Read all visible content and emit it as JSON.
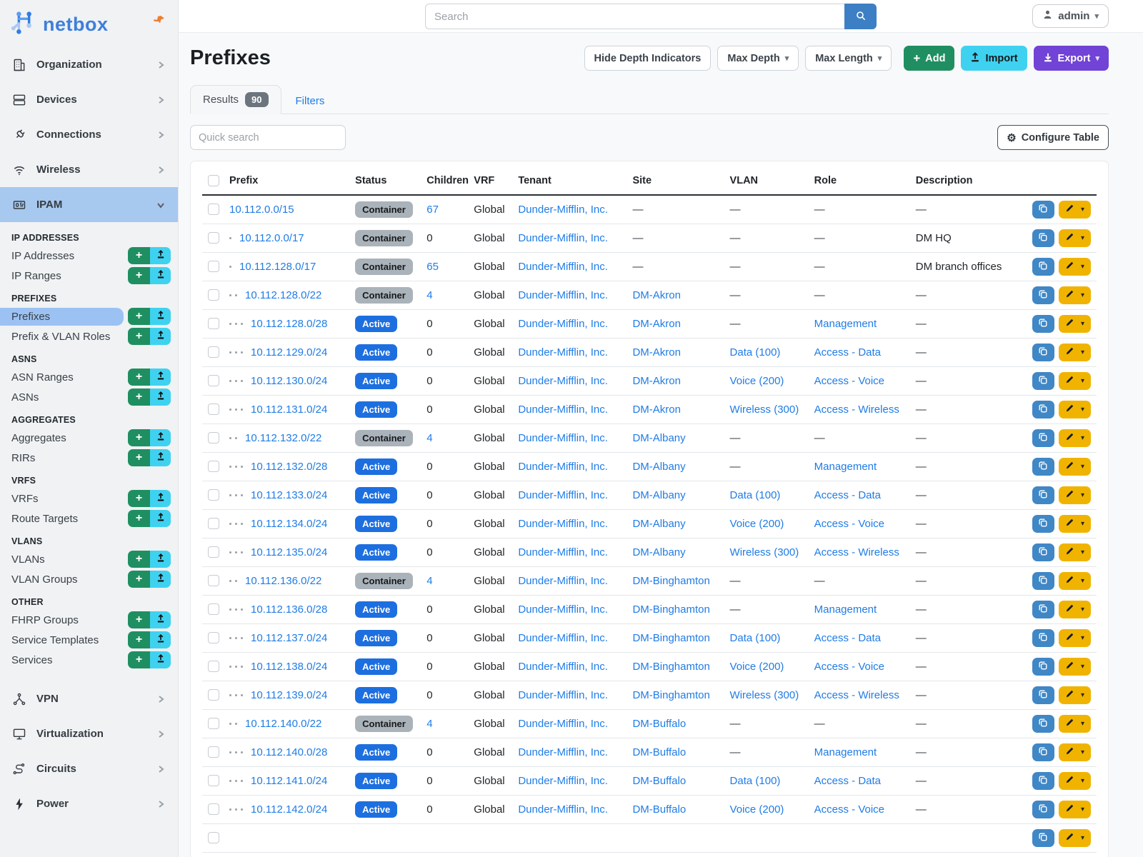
{
  "brand": {
    "name": "netbox"
  },
  "topbar": {
    "search_placeholder": "Search",
    "user": "admin"
  },
  "sidebar": {
    "top_items": [
      {
        "label": "Organization",
        "icon": "building-icon"
      },
      {
        "label": "Devices",
        "icon": "server-icon"
      },
      {
        "label": "Connections",
        "icon": "plug-icon"
      },
      {
        "label": "Wireless",
        "icon": "wifi-icon"
      }
    ],
    "ipam": {
      "label": "IPAM",
      "icon": "counter-icon"
    },
    "ipam_sections": [
      {
        "header": "IP ADDRESSES",
        "items": [
          {
            "label": "IP Addresses"
          },
          {
            "label": "IP Ranges"
          }
        ]
      },
      {
        "header": "PREFIXES",
        "items": [
          {
            "label": "Prefixes",
            "active": true
          },
          {
            "label": "Prefix & VLAN Roles"
          }
        ]
      },
      {
        "header": "ASNS",
        "items": [
          {
            "label": "ASN Ranges"
          },
          {
            "label": "ASNs"
          }
        ]
      },
      {
        "header": "AGGREGATES",
        "items": [
          {
            "label": "Aggregates"
          },
          {
            "label": "RIRs"
          }
        ]
      },
      {
        "header": "VRFS",
        "items": [
          {
            "label": "VRFs"
          },
          {
            "label": "Route Targets"
          }
        ]
      },
      {
        "header": "VLANS",
        "items": [
          {
            "label": "VLANs"
          },
          {
            "label": "VLAN Groups"
          }
        ]
      },
      {
        "header": "OTHER",
        "items": [
          {
            "label": "FHRP Groups"
          },
          {
            "label": "Service Templates"
          },
          {
            "label": "Services"
          }
        ]
      }
    ],
    "bottom_items": [
      {
        "label": "VPN",
        "icon": "sitemap-icon"
      },
      {
        "label": "Virtualization",
        "icon": "monitor-icon"
      },
      {
        "label": "Circuits",
        "icon": "route-icon"
      },
      {
        "label": "Power",
        "icon": "bolt-icon"
      }
    ]
  },
  "page": {
    "title": "Prefixes",
    "buttons": {
      "hide_depth": "Hide Depth Indicators",
      "max_depth": "Max Depth",
      "max_length": "Max Length",
      "add": "Add",
      "import": "Import",
      "export": "Export"
    },
    "tabs": {
      "results": "Results",
      "results_count": "90",
      "filters": "Filters"
    },
    "quick_search_placeholder": "Quick search",
    "configure_table": "Configure Table"
  },
  "table": {
    "columns": [
      "Prefix",
      "Status",
      "Children",
      "VRF",
      "Tenant",
      "Site",
      "VLAN",
      "Role",
      "Description"
    ],
    "rows": [
      {
        "depth": 0,
        "prefix": "10.112.0.0/15",
        "status": "Container",
        "children": "67",
        "children_link": true,
        "vrf": "Global",
        "tenant": "Dunder-Mifflin, Inc.",
        "site": "—",
        "vlan": "—",
        "role": "—",
        "description": "—"
      },
      {
        "depth": 1,
        "prefix": "10.112.0.0/17",
        "status": "Container",
        "children": "0",
        "children_link": false,
        "vrf": "Global",
        "tenant": "Dunder-Mifflin, Inc.",
        "site": "—",
        "vlan": "—",
        "role": "—",
        "description": "DM HQ"
      },
      {
        "depth": 1,
        "prefix": "10.112.128.0/17",
        "status": "Container",
        "children": "65",
        "children_link": true,
        "vrf": "Global",
        "tenant": "Dunder-Mifflin, Inc.",
        "site": "—",
        "vlan": "—",
        "role": "—",
        "description": "DM branch offices"
      },
      {
        "depth": 2,
        "prefix": "10.112.128.0/22",
        "status": "Container",
        "children": "4",
        "children_link": true,
        "vrf": "Global",
        "tenant": "Dunder-Mifflin, Inc.",
        "site": "DM-Akron",
        "vlan": "—",
        "role": "—",
        "description": "—"
      },
      {
        "depth": 3,
        "prefix": "10.112.128.0/28",
        "status": "Active",
        "children": "0",
        "children_link": false,
        "vrf": "Global",
        "tenant": "Dunder-Mifflin, Inc.",
        "site": "DM-Akron",
        "vlan": "—",
        "role": "Management",
        "description": "—"
      },
      {
        "depth": 3,
        "prefix": "10.112.129.0/24",
        "status": "Active",
        "children": "0",
        "children_link": false,
        "vrf": "Global",
        "tenant": "Dunder-Mifflin, Inc.",
        "site": "DM-Akron",
        "vlan": "Data (100)",
        "role": "Access - Data",
        "description": "—"
      },
      {
        "depth": 3,
        "prefix": "10.112.130.0/24",
        "status": "Active",
        "children": "0",
        "children_link": false,
        "vrf": "Global",
        "tenant": "Dunder-Mifflin, Inc.",
        "site": "DM-Akron",
        "vlan": "Voice (200)",
        "role": "Access - Voice",
        "description": "—"
      },
      {
        "depth": 3,
        "prefix": "10.112.131.0/24",
        "status": "Active",
        "children": "0",
        "children_link": false,
        "vrf": "Global",
        "tenant": "Dunder-Mifflin, Inc.",
        "site": "DM-Akron",
        "vlan": "Wireless (300)",
        "role": "Access - Wireless",
        "description": "—"
      },
      {
        "depth": 2,
        "prefix": "10.112.132.0/22",
        "status": "Container",
        "children": "4",
        "children_link": true,
        "vrf": "Global",
        "tenant": "Dunder-Mifflin, Inc.",
        "site": "DM-Albany",
        "vlan": "—",
        "role": "—",
        "description": "—"
      },
      {
        "depth": 3,
        "prefix": "10.112.132.0/28",
        "status": "Active",
        "children": "0",
        "children_link": false,
        "vrf": "Global",
        "tenant": "Dunder-Mifflin, Inc.",
        "site": "DM-Albany",
        "vlan": "—",
        "role": "Management",
        "description": "—"
      },
      {
        "depth": 3,
        "prefix": "10.112.133.0/24",
        "status": "Active",
        "children": "0",
        "children_link": false,
        "vrf": "Global",
        "tenant": "Dunder-Mifflin, Inc.",
        "site": "DM-Albany",
        "vlan": "Data (100)",
        "role": "Access - Data",
        "description": "—"
      },
      {
        "depth": 3,
        "prefix": "10.112.134.0/24",
        "status": "Active",
        "children": "0",
        "children_link": false,
        "vrf": "Global",
        "tenant": "Dunder-Mifflin, Inc.",
        "site": "DM-Albany",
        "vlan": "Voice (200)",
        "role": "Access - Voice",
        "description": "—"
      },
      {
        "depth": 3,
        "prefix": "10.112.135.0/24",
        "status": "Active",
        "children": "0",
        "children_link": false,
        "vrf": "Global",
        "tenant": "Dunder-Mifflin, Inc.",
        "site": "DM-Albany",
        "vlan": "Wireless (300)",
        "role": "Access - Wireless",
        "description": "—"
      },
      {
        "depth": 2,
        "prefix": "10.112.136.0/22",
        "status": "Container",
        "children": "4",
        "children_link": true,
        "vrf": "Global",
        "tenant": "Dunder-Mifflin, Inc.",
        "site": "DM-Binghamton",
        "vlan": "—",
        "role": "—",
        "description": "—"
      },
      {
        "depth": 3,
        "prefix": "10.112.136.0/28",
        "status": "Active",
        "children": "0",
        "children_link": false,
        "vrf": "Global",
        "tenant": "Dunder-Mifflin, Inc.",
        "site": "DM-Binghamton",
        "vlan": "—",
        "role": "Management",
        "description": "—"
      },
      {
        "depth": 3,
        "prefix": "10.112.137.0/24",
        "status": "Active",
        "children": "0",
        "children_link": false,
        "vrf": "Global",
        "tenant": "Dunder-Mifflin, Inc.",
        "site": "DM-Binghamton",
        "vlan": "Data (100)",
        "role": "Access - Data",
        "description": "—"
      },
      {
        "depth": 3,
        "prefix": "10.112.138.0/24",
        "status": "Active",
        "children": "0",
        "children_link": false,
        "vrf": "Global",
        "tenant": "Dunder-Mifflin, Inc.",
        "site": "DM-Binghamton",
        "vlan": "Voice (200)",
        "role": "Access - Voice",
        "description": "—"
      },
      {
        "depth": 3,
        "prefix": "10.112.139.0/24",
        "status": "Active",
        "children": "0",
        "children_link": false,
        "vrf": "Global",
        "tenant": "Dunder-Mifflin, Inc.",
        "site": "DM-Binghamton",
        "vlan": "Wireless (300)",
        "role": "Access - Wireless",
        "description": "—"
      },
      {
        "depth": 2,
        "prefix": "10.112.140.0/22",
        "status": "Container",
        "children": "4",
        "children_link": true,
        "vrf": "Global",
        "tenant": "Dunder-Mifflin, Inc.",
        "site": "DM-Buffalo",
        "vlan": "—",
        "role": "—",
        "description": "—"
      },
      {
        "depth": 3,
        "prefix": "10.112.140.0/28",
        "status": "Active",
        "children": "0",
        "children_link": false,
        "vrf": "Global",
        "tenant": "Dunder-Mifflin, Inc.",
        "site": "DM-Buffalo",
        "vlan": "—",
        "role": "Management",
        "description": "—"
      },
      {
        "depth": 3,
        "prefix": "10.112.141.0/24",
        "status": "Active",
        "children": "0",
        "children_link": false,
        "vrf": "Global",
        "tenant": "Dunder-Mifflin, Inc.",
        "site": "DM-Buffalo",
        "vlan": "Data (100)",
        "role": "Access - Data",
        "description": "—"
      },
      {
        "depth": 3,
        "prefix": "10.112.142.0/24",
        "status": "Active",
        "children": "0",
        "children_link": false,
        "vrf": "Global",
        "tenant": "Dunder-Mifflin, Inc.",
        "site": "DM-Buffalo",
        "vlan": "Voice (200)",
        "role": "Access - Voice",
        "description": "—"
      },
      {
        "depth": 0,
        "prefix": "",
        "status": "",
        "children": "",
        "children_link": false,
        "vrf": "",
        "tenant": "",
        "site": "",
        "vlan": "",
        "role": "",
        "description": ""
      }
    ]
  },
  "colors": {
    "add_green": "#1f8f61",
    "import_cyan": "#3fd2f0",
    "export_purple": "#7143d6",
    "edit_yellow": "#f0b400",
    "copy_blue": "#4087c6",
    "search_blue": "#3d7fc4",
    "active_badge": "#1d6fe0",
    "container_badge": "#aab2ba",
    "link_blue": "#1f7ce6",
    "sidebar_active": "#a7c8ef",
    "sidebar_item_active": "#9cc2f3",
    "pin_orange": "#ee7f2e",
    "brand_blue": "#3e7fd9"
  }
}
